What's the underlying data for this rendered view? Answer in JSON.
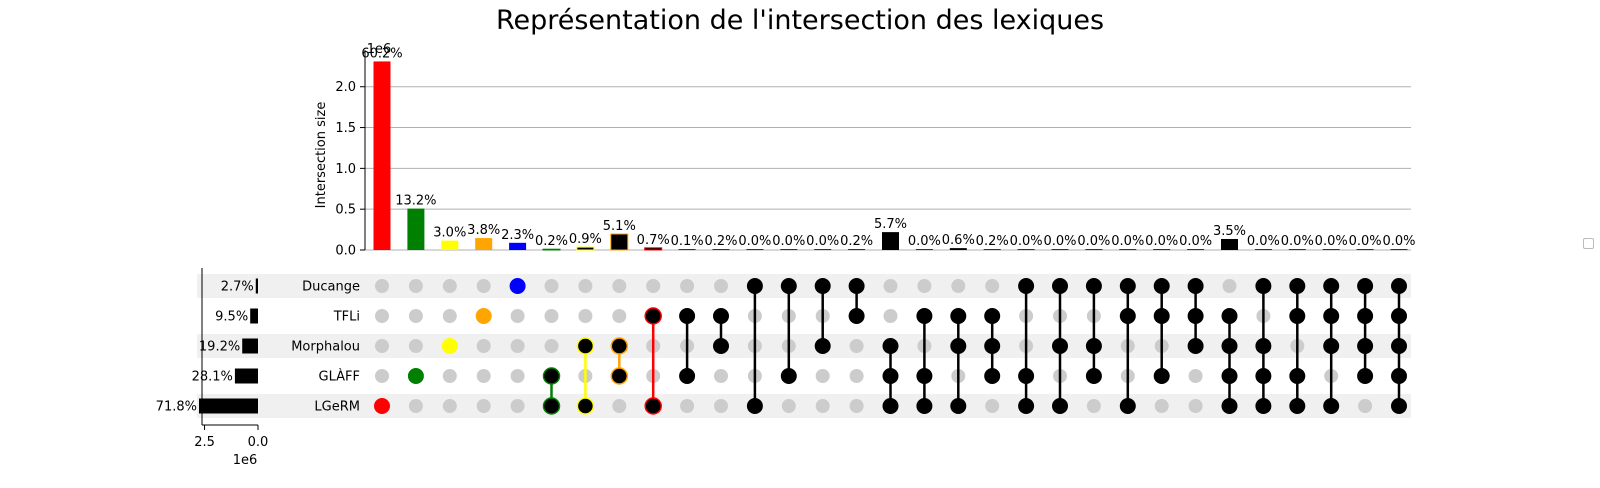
{
  "chart_data": {
    "type": "upset",
    "title": "Représentation de l'intersection des lexiques",
    "ylabel": "Intersection size",
    "y_offset_label": "1e6",
    "y_ticks": [
      "0.0",
      "0.5",
      "1.0",
      "1.5",
      "2.0"
    ],
    "ylim": [
      0,
      2.45
    ],
    "grid": true,
    "legend": "right (empty)",
    "sets": [
      {
        "name": "Ducange",
        "percent": "2.7%",
        "size": 104000
      },
      {
        "name": "TFLi",
        "percent": "9.5%",
        "size": 365000
      },
      {
        "name": "Morphalou",
        "percent": "19.2%",
        "size": 738000
      },
      {
        "name": "GLÀFF",
        "percent": "28.1%",
        "size": 1080000
      },
      {
        "name": "LGeRM",
        "percent": "71.8%",
        "size": 2760000
      }
    ],
    "set_size_axis": {
      "ticks": [
        "2.5",
        "0.0"
      ],
      "offset_label": "1e6",
      "lim": [
        0,
        2.9
      ]
    },
    "intersections": [
      {
        "members": [
          4
        ],
        "value": 2310000,
        "label": "60.2%",
        "color": "#ff0000"
      },
      {
        "members": [
          3
        ],
        "value": 507000,
        "label": "13.2%",
        "color": "#008000"
      },
      {
        "members": [
          2
        ],
        "value": 115000,
        "label": "3.0%",
        "color": "#ffff00"
      },
      {
        "members": [
          1
        ],
        "value": 146000,
        "label": "3.8%",
        "color": "#ffa500"
      },
      {
        "members": [
          0
        ],
        "value": 88000,
        "label": "2.3%",
        "color": "#0000ff"
      },
      {
        "members": [
          3,
          4
        ],
        "value": 8000,
        "label": "0.2%",
        "color": "#000000",
        "edge": "#008000"
      },
      {
        "members": [
          2,
          4
        ],
        "value": 35000,
        "label": "0.9%",
        "color": "#000000",
        "edge": "#ffff00"
      },
      {
        "members": [
          2,
          3
        ],
        "value": 196000,
        "label": "5.1%",
        "color": "#000000",
        "edge": "#ffa500"
      },
      {
        "members": [
          1,
          4
        ],
        "value": 27000,
        "label": "0.7%",
        "color": "#000000",
        "edge": "#ff0000"
      },
      {
        "members": [
          1,
          3
        ],
        "value": 4000,
        "label": "0.1%",
        "color": "#000000"
      },
      {
        "members": [
          1,
          2
        ],
        "value": 8000,
        "label": "0.2%",
        "color": "#000000"
      },
      {
        "members": [
          0,
          4
        ],
        "value": 1000,
        "label": "0.0%",
        "color": "#000000"
      },
      {
        "members": [
          0,
          3
        ],
        "value": 1000,
        "label": "0.0%",
        "color": "#000000"
      },
      {
        "members": [
          0,
          2
        ],
        "value": 1000,
        "label": "0.0%",
        "color": "#000000"
      },
      {
        "members": [
          0,
          1
        ],
        "value": 8000,
        "label": "0.2%",
        "color": "#000000"
      },
      {
        "members": [
          2,
          3,
          4
        ],
        "value": 219000,
        "label": "5.7%",
        "color": "#000000"
      },
      {
        "members": [
          1,
          3,
          4
        ],
        "value": 1000,
        "label": "0.0%",
        "color": "#000000"
      },
      {
        "members": [
          1,
          2,
          4
        ],
        "value": 23000,
        "label": "0.6%",
        "color": "#000000"
      },
      {
        "members": [
          1,
          2,
          3
        ],
        "value": 8000,
        "label": "0.2%",
        "color": "#000000"
      },
      {
        "members": [
          0,
          3,
          4
        ],
        "value": 1000,
        "label": "0.0%",
        "color": "#000000"
      },
      {
        "members": [
          0,
          2,
          4
        ],
        "value": 1000,
        "label": "0.0%",
        "color": "#000000"
      },
      {
        "members": [
          0,
          2,
          3
        ],
        "value": 1000,
        "label": "0.0%",
        "color": "#000000"
      },
      {
        "members": [
          0,
          1,
          4
        ],
        "value": 1000,
        "label": "0.0%",
        "color": "#000000"
      },
      {
        "members": [
          0,
          1,
          3
        ],
        "value": 1000,
        "label": "0.0%",
        "color": "#000000"
      },
      {
        "members": [
          0,
          1,
          2
        ],
        "value": 1000,
        "label": "0.0%",
        "color": "#000000"
      },
      {
        "members": [
          1,
          2,
          3,
          4
        ],
        "value": 135000,
        "label": "3.5%",
        "color": "#000000"
      },
      {
        "members": [
          0,
          2,
          3,
          4
        ],
        "value": 1000,
        "label": "0.0%",
        "color": "#000000"
      },
      {
        "members": [
          0,
          1,
          3,
          4
        ],
        "value": 1000,
        "label": "0.0%",
        "color": "#000000"
      },
      {
        "members": [
          0,
          1,
          2,
          4
        ],
        "value": 1000,
        "label": "0.0%",
        "color": "#000000"
      },
      {
        "members": [
          0,
          1,
          2,
          3
        ],
        "value": 1000,
        "label": "0.0%",
        "color": "#000000"
      },
      {
        "members": [
          0,
          1,
          2,
          3,
          4
        ],
        "value": 1000,
        "label": "0.0%",
        "color": "#000000"
      }
    ],
    "colors": {
      "inactive_dot": "#cccccc",
      "shaded_row": "#f0f0f0",
      "grid": "#b0b0b0"
    }
  }
}
